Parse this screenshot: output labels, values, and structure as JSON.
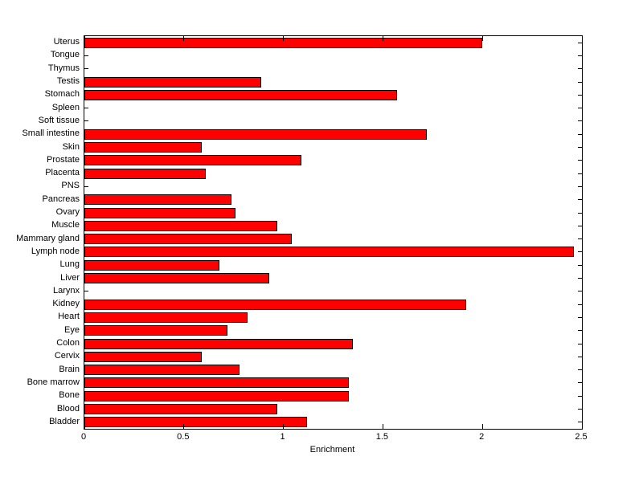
{
  "chart_data": {
    "type": "bar",
    "orientation": "horizontal",
    "title": "",
    "xlabel": "Enrichment",
    "ylabel": "",
    "xlim": [
      0,
      2.5
    ],
    "x_ticks": [
      0,
      0.5,
      1,
      1.5,
      2,
      2.5
    ],
    "x_tick_labels": [
      "0",
      "0.5",
      "1",
      "1.5",
      "2",
      "2.5"
    ],
    "categories": [
      "Uterus",
      "Tongue",
      "Thymus",
      "Testis",
      "Stomach",
      "Spleen",
      "Soft tissue",
      "Small intestine",
      "Skin",
      "Prostate",
      "Placenta",
      "PNS",
      "Pancreas",
      "Ovary",
      "Muscle",
      "Mammary gland",
      "Lymph node",
      "Lung",
      "Liver",
      "Larynx",
      "Kidney",
      "Heart",
      "Eye",
      "Colon",
      "Cervix",
      "Brain",
      "Bone marrow",
      "Bone",
      "Blood",
      "Bladder"
    ],
    "values": [
      2.0,
      0,
      0,
      0.89,
      1.57,
      0,
      0,
      1.72,
      0.59,
      1.09,
      0.61,
      0,
      0.74,
      0.76,
      0.97,
      1.04,
      2.46,
      0.68,
      0.93,
      0,
      1.92,
      0.82,
      0.72,
      1.35,
      0.59,
      0.78,
      1.33,
      1.33,
      0.97,
      1.12
    ],
    "bar_color": "#ff0000",
    "bar_edge_color": "#000000",
    "axis_color": "#000000",
    "background_color": "#ffffff",
    "grid": false,
    "legend": null
  }
}
